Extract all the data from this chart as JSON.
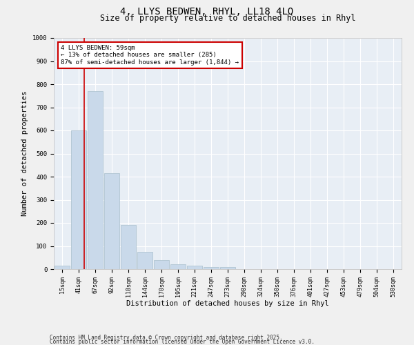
{
  "title1": "4, LLYS BEDWEN, RHYL, LL18 4LQ",
  "title2": "Size of property relative to detached houses in Rhyl",
  "xlabel": "Distribution of detached houses by size in Rhyl",
  "ylabel": "Number of detached properties",
  "bar_labels": [
    "15sqm",
    "41sqm",
    "67sqm",
    "92sqm",
    "118sqm",
    "144sqm",
    "170sqm",
    "195sqm",
    "221sqm",
    "247sqm",
    "273sqm",
    "298sqm",
    "324sqm",
    "350sqm",
    "376sqm",
    "401sqm",
    "427sqm",
    "453sqm",
    "479sqm",
    "504sqm",
    "530sqm"
  ],
  "bar_heights": [
    15,
    600,
    770,
    415,
    190,
    75,
    40,
    20,
    15,
    10,
    10,
    0,
    0,
    0,
    0,
    0,
    0,
    0,
    0,
    0,
    0
  ],
  "bar_color": "#c9d9ea",
  "bar_edge_color": "#a8becc",
  "vline_color": "#cc0000",
  "annotation_text": "4 LLYS BEDWEN: 59sqm\n← 13% of detached houses are smaller (285)\n87% of semi-detached houses are larger (1,844) →",
  "annotation_box_color": "#ffffff",
  "annotation_box_edge": "#cc0000",
  "ylim": [
    0,
    1000
  ],
  "yticks": [
    0,
    100,
    200,
    300,
    400,
    500,
    600,
    700,
    800,
    900,
    1000
  ],
  "background_color": "#e8eef5",
  "grid_color": "#ffffff",
  "footer_line1": "Contains HM Land Registry data © Crown copyright and database right 2025.",
  "footer_line2": "Contains public sector information licensed under the Open Government Licence v3.0.",
  "title_fontsize": 10,
  "subtitle_fontsize": 8.5,
  "tick_fontsize": 6,
  "label_fontsize": 7.5,
  "footer_fontsize": 5.5,
  "annotation_fontsize": 6.5
}
